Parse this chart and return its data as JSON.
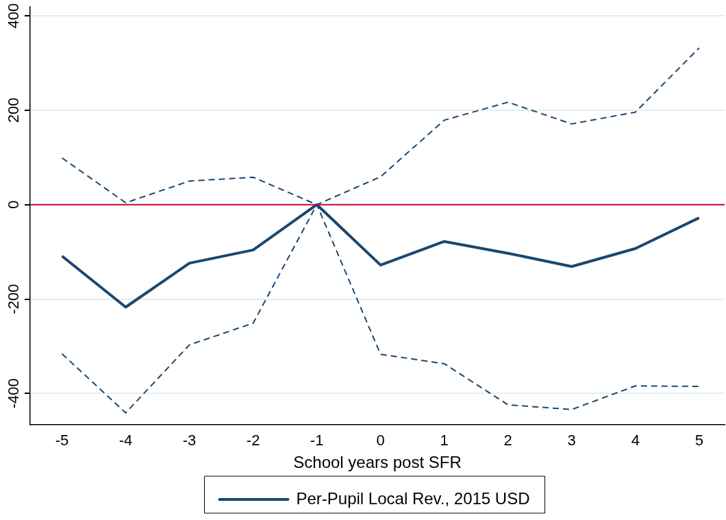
{
  "chart_data": {
    "type": "line",
    "xlabel": "School years post SFR",
    "x": [
      -5,
      -4,
      -3,
      -2,
      -1,
      0,
      1,
      2,
      3,
      4,
      5
    ],
    "xlim": [
      -5.5,
      5.4
    ],
    "xticks": [
      -5,
      -4,
      -3,
      -2,
      -1,
      0,
      1,
      2,
      3,
      4,
      5
    ],
    "ylim": [
      -466,
      419
    ],
    "yticks": [
      -400,
      -200,
      0,
      200,
      400
    ],
    "grid": "y",
    "legend": "bottom",
    "marker": "none",
    "series": [
      {
        "name": "Per-Pupil Local Rev., 2015 USD",
        "color": "#1a476f",
        "line_style": "solid",
        "values": [
          -109,
          -217,
          -124,
          -96,
          0,
          -128,
          -78,
          -103,
          -131,
          -93,
          -28
        ]
      },
      {
        "color": "#1a476f",
        "line_style": "dashed",
        "values": [
          99,
          4,
          50,
          58,
          0,
          59,
          179,
          217,
          171,
          196,
          332
        ]
      },
      {
        "color": "#1a476f",
        "line_style": "dashed",
        "values": [
          -316,
          -441,
          -297,
          -251,
          0,
          -317,
          -337,
          -424,
          -434,
          -384,
          -385
        ]
      }
    ],
    "ref_lines": [
      {
        "axis": "y",
        "value": 0,
        "color": "#c10534",
        "line_style": "solid"
      }
    ]
  }
}
